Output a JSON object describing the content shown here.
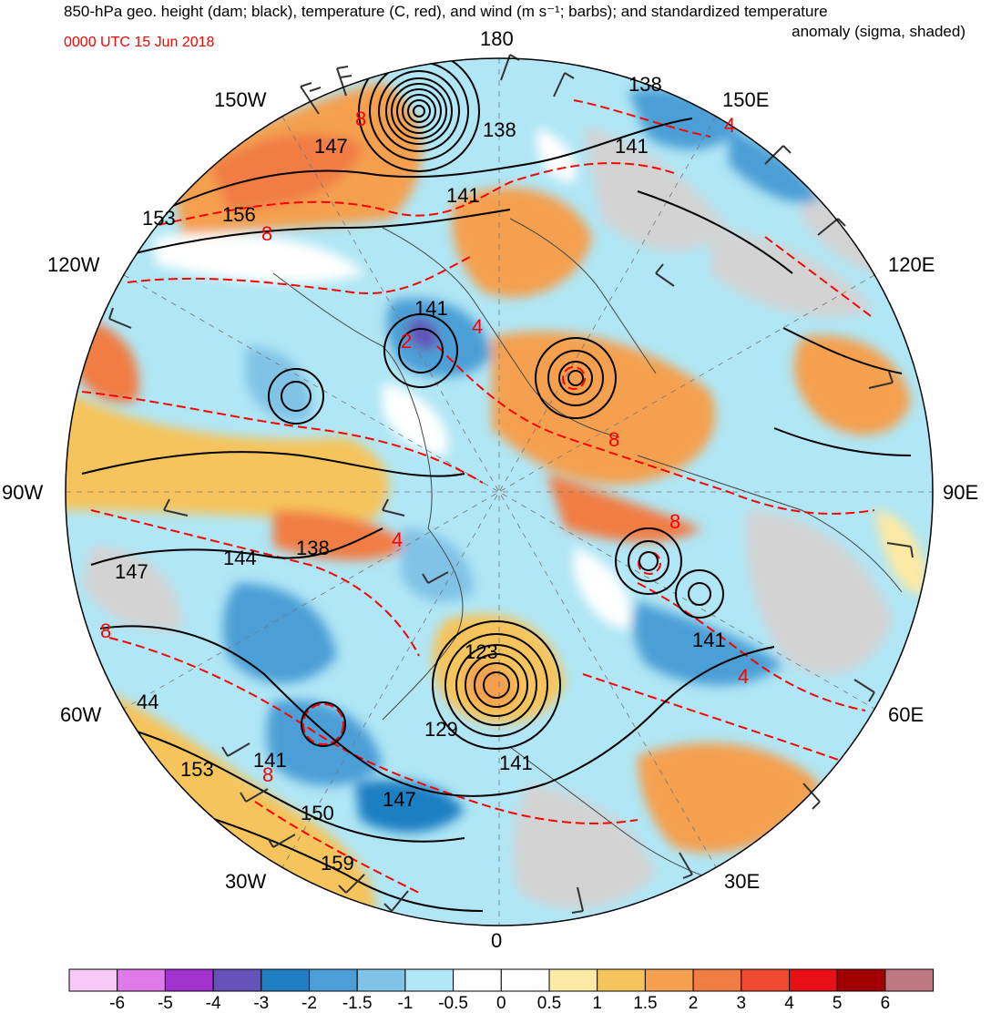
{
  "title": {
    "line1": "850-hPa geo. height (dam; black), temperature (C, red), and wind (m s⁻¹; barbs); and standardized temperature",
    "line2": "anomaly (sigma, shaded)"
  },
  "valid_time": "0000 UTC 15 Jun 2018",
  "longitude_labels": {
    "deg180": "180",
    "w150": "150W",
    "e150": "150E",
    "w120": "120W",
    "e120": "120E",
    "w90": "90W",
    "e90": "90E",
    "w60": "60W",
    "e60": "60E",
    "w30": "30W",
    "e30": "30E",
    "deg0": "0"
  },
  "height_labels": [
    "138",
    "147",
    "138",
    "141",
    "141",
    "153",
    "156",
    "141",
    "144",
    "147",
    "138",
    "123",
    "129",
    "141",
    "141",
    "44",
    "153",
    "141",
    "150",
    "147",
    "159"
  ],
  "temperature_labels": [
    "8",
    "4",
    "8",
    "4",
    "2",
    "8",
    "8",
    "4",
    "8",
    "8",
    "4"
  ],
  "colors": {
    "height_contour": "#000000",
    "temperature_contour": "#ff0000",
    "land_gray": "#d3d3d3",
    "coast": "#444444"
  },
  "colorbar": {
    "labels": [
      "-6",
      "-5",
      "-4",
      "-3",
      "-2",
      "-1.5",
      "-1",
      "-0.5",
      "0",
      "0.5",
      "1",
      "1.5",
      "2",
      "3",
      "4",
      "5",
      "6"
    ],
    "colors": [
      "#f6c9f6",
      "#e07ae8",
      "#a333cf",
      "#6452b8",
      "#1f7fc2",
      "#4c9fd6",
      "#80c3e6",
      "#b0e6f5",
      "#ffffff",
      "#ffffff",
      "#fbe9a4",
      "#f6c45c",
      "#f4a04f",
      "#f17d45",
      "#ef4a31",
      "#e81014",
      "#a00000",
      "#c07880"
    ]
  }
}
